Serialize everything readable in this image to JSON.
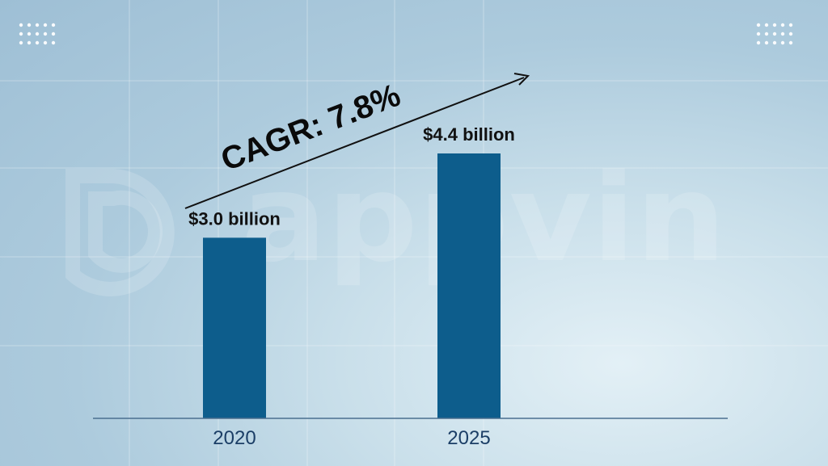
{
  "brand": {
    "watermark": "appvin"
  },
  "icons": {
    "top_left": "dot-grid-icon",
    "top_right": "dot-grid-icon",
    "watermark_logo": "appvin-logo-icon"
  },
  "colors": {
    "bar": "#0d5d8c",
    "value_label": "#111111",
    "tick_label": "#1b3e66",
    "annotation": "#0a0a0a"
  },
  "chart_data": {
    "type": "bar",
    "categories": [
      "2020",
      "2025"
    ],
    "values": [
      3.0,
      4.4
    ],
    "value_labels": [
      "$3.0 billion",
      "$4.4 billion"
    ],
    "unit": "billion USD",
    "annotation": "CAGR: 7.8%",
    "title": "",
    "xlabel": "",
    "ylabel": "",
    "ylim": [
      0,
      4.4
    ],
    "grid": false,
    "legend": "none"
  }
}
